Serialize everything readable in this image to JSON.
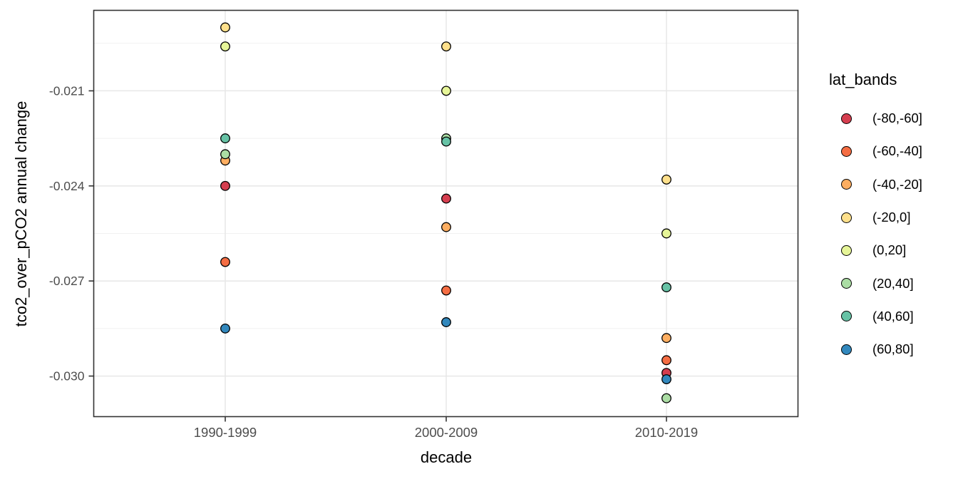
{
  "chart_data": {
    "type": "scatter",
    "title": "",
    "xlabel": "decade",
    "ylabel": "tco2_over_pCO2 annual change",
    "categories": [
      "1990-1999",
      "2000-2009",
      "2010-2019"
    ],
    "ylim": [
      -0.03128,
      -0.01846
    ],
    "yticks": {
      "values": [
        -0.021,
        -0.024,
        -0.027,
        -0.03
      ],
      "labels": [
        "-0.021",
        "-0.024",
        "-0.027",
        "-0.030"
      ]
    },
    "yminor": [
      -0.0195,
      -0.0225,
      -0.0255,
      -0.0285
    ],
    "grid": true,
    "legend": {
      "title": "lat_bands",
      "position": "right"
    },
    "series": [
      {
        "name": "(-80,-60]",
        "color": "#D53E4F",
        "values": [
          -0.024,
          -0.0244,
          -0.0299
        ]
      },
      {
        "name": "(-60,-40]",
        "color": "#F46D43",
        "values": [
          -0.0264,
          -0.0273,
          -0.0295
        ]
      },
      {
        "name": "(-40,-20]",
        "color": "#FDAE61",
        "values": [
          -0.0232,
          -0.0253,
          -0.0288
        ]
      },
      {
        "name": "(-20,0]",
        "color": "#FEE08B",
        "values": [
          -0.019,
          -0.0196,
          -0.0238
        ]
      },
      {
        "name": "(0,20]",
        "color": "#E6F598",
        "values": [
          -0.0196,
          -0.021,
          -0.0255
        ]
      },
      {
        "name": "(20,40]",
        "color": "#ABDDA4",
        "values": [
          -0.023,
          -0.0225,
          -0.0307
        ]
      },
      {
        "name": "(40,60]",
        "color": "#66C2A5",
        "values": [
          -0.0225,
          -0.0226,
          -0.0272
        ]
      },
      {
        "name": "(60,80]",
        "color": "#3288BD",
        "values": [
          -0.0285,
          -0.0283,
          -0.0301
        ]
      }
    ],
    "style": {
      "point_radius": 6.3,
      "point_stroke": "#000000",
      "point_stroke_width": 1.3,
      "panel_border": "#333333",
      "grid_major": "#E7E7E7",
      "grid_minor": "#F1F1F1",
      "tick_color": "#333333",
      "tick_label_color": "#4D4D4D",
      "text_color": "#000000",
      "background": "#FFFFFF"
    }
  }
}
